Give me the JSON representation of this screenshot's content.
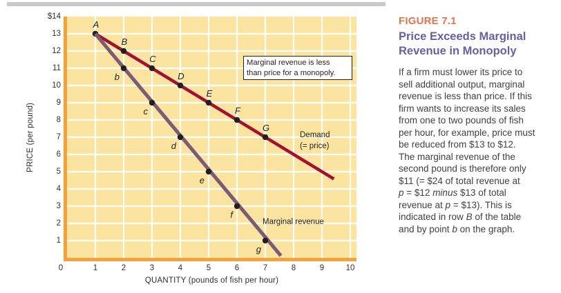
{
  "figure_panel": {
    "kicker": "FIGURE 7.1",
    "kicker_color": "#e37349",
    "title_lines": [
      "Price Exceeds Marginal",
      "Revenue in Monopoly"
    ],
    "title_color": "#6660a5",
    "note_lines": [
      [
        {
          "t": "If a firm must lower its price to"
        }
      ],
      [
        {
          "t": "sell additional output, marginal"
        }
      ],
      [
        {
          "t": "revenue is less than price. If this"
        }
      ],
      [
        {
          "t": "firm wants to increase its sales"
        }
      ],
      [
        {
          "t": "from one to two pounds of fish"
        }
      ],
      [
        {
          "t": "per hour, for example, price must"
        }
      ],
      [
        {
          "t": "be reduced from $13 to $12."
        }
      ],
      [
        {
          "t": "The marginal revenue of the"
        }
      ],
      [
        {
          "t": "second pound is therefore only"
        }
      ],
      [
        {
          "t": "$11 (= $24 of total revenue at"
        }
      ],
      [
        {
          "t": "p",
          "i": true
        },
        {
          "t": " = $12 "
        },
        {
          "t": "minus",
          "i": true
        },
        {
          "t": " $13 of total"
        }
      ],
      [
        {
          "t": "revenue at "
        },
        {
          "t": "p",
          "i": true
        },
        {
          "t": " = $13). This is"
        }
      ],
      [
        {
          "t": "indicated in row "
        },
        {
          "t": "B",
          "i": true
        },
        {
          "t": " of the table"
        }
      ],
      [
        {
          "t": "and by point "
        },
        {
          "t": "b",
          "i": true
        },
        {
          "t": " on the graph."
        }
      ]
    ]
  },
  "chart_data": {
    "type": "line",
    "xlabel": "QUANTITY (pounds of fish per hour)",
    "ylabel": "PRICE (per pound)",
    "xlim": [
      0,
      10.2
    ],
    "ylim": [
      0,
      14
    ],
    "grid": {
      "show": true,
      "color": "#ffffff"
    },
    "plot_bg": "#fbe49f",
    "axis_color": "#f5a23c",
    "point_color": "#231f20",
    "x_ticks": [
      {
        "value": 0,
        "label": "0"
      },
      {
        "value": 1,
        "label": "1"
      },
      {
        "value": 2,
        "label": "2"
      },
      {
        "value": 3,
        "label": "3"
      },
      {
        "value": 4,
        "label": "4"
      },
      {
        "value": 5,
        "label": "5"
      },
      {
        "value": 6,
        "label": "6"
      },
      {
        "value": 7,
        "label": "7"
      },
      {
        "value": 8,
        "label": "8"
      },
      {
        "value": 9,
        "label": "9"
      },
      {
        "value": 10,
        "label": "10"
      }
    ],
    "y_ticks": [
      {
        "value": 14,
        "label": "$14"
      },
      {
        "value": 13,
        "label": "13"
      },
      {
        "value": 12,
        "label": "12"
      },
      {
        "value": 11,
        "label": "11"
      },
      {
        "value": 10,
        "label": "10"
      },
      {
        "value": 9,
        "label": "9"
      },
      {
        "value": 8,
        "label": "8"
      },
      {
        "value": 7,
        "label": "7"
      },
      {
        "value": 6,
        "label": "6"
      },
      {
        "value": 5,
        "label": "5"
      },
      {
        "value": 4,
        "label": "4"
      },
      {
        "value": 3,
        "label": "3"
      },
      {
        "value": 2,
        "label": "2"
      },
      {
        "value": 1,
        "label": "1"
      }
    ],
    "series": [
      {
        "name": "Demand (= price)",
        "label_lines": [
          "Demand",
          "(= price)"
        ],
        "color": "#a31132",
        "line": {
          "x1": 1,
          "y1": 13,
          "x2": 9.42,
          "y2": 4.58
        },
        "points": [
          {
            "label": "A",
            "x": 1,
            "y": 13,
            "label_pos": "above"
          },
          {
            "label": "B",
            "x": 2,
            "y": 12,
            "label_pos": "above"
          },
          {
            "label": "C",
            "x": 3,
            "y": 11,
            "label_pos": "above"
          },
          {
            "label": "D",
            "x": 4,
            "y": 10,
            "label_pos": "above"
          },
          {
            "label": "E",
            "x": 5,
            "y": 9,
            "label_pos": "above"
          },
          {
            "label": "F",
            "x": 6,
            "y": 8,
            "label_pos": "above"
          },
          {
            "label": "G",
            "x": 7,
            "y": 7,
            "label_pos": "above"
          }
        ]
      },
      {
        "name": "Marginal revenue",
        "label_lines": [
          "Marginal revenue"
        ],
        "color": "#7a5c74",
        "line": {
          "x1": 1,
          "y1": 13,
          "x2": 7.55,
          "y2": 0.12
        },
        "points": [
          {
            "label": "b",
            "x": 2,
            "y": 11,
            "label_pos": "below-left"
          },
          {
            "label": "c",
            "x": 3,
            "y": 9,
            "label_pos": "below-left"
          },
          {
            "label": "d",
            "x": 4,
            "y": 7,
            "label_pos": "below-left"
          },
          {
            "label": "e",
            "x": 5,
            "y": 5,
            "label_pos": "below-left"
          },
          {
            "label": "f",
            "x": 6,
            "y": 3,
            "label_pos": "below-left"
          },
          {
            "label": "g",
            "x": 7,
            "y": 1,
            "label_pos": "below-left"
          }
        ]
      }
    ],
    "annotation": {
      "lines": [
        "Marginal revenue is less",
        "than price for a monopoly."
      ]
    }
  }
}
